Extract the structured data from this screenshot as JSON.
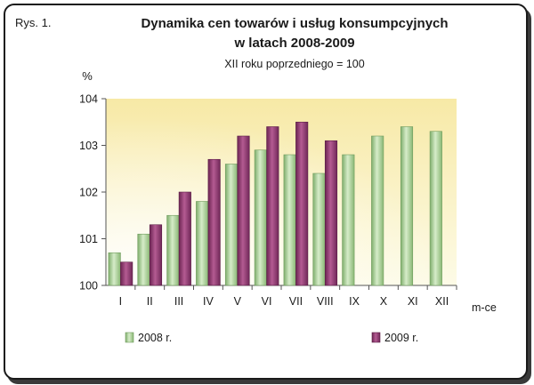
{
  "figure_label": "Rys. 1.",
  "chart_data": {
    "type": "bar",
    "title_line1": "Dynamika cen towarów i usług konsumpcyjnych",
    "title_line2": "w latach 2008-2009",
    "subtitle": "XII roku poprzedniego = 100",
    "ylabel": "%",
    "xlabel": "m-ce",
    "ylim": [
      100,
      104
    ],
    "yticks": [
      100,
      101,
      102,
      103,
      104
    ],
    "categories": [
      "I",
      "II",
      "III",
      "IV",
      "V",
      "VI",
      "VII",
      "VIII",
      "IX",
      "X",
      "XI",
      "XII"
    ],
    "series": [
      {
        "name": "2008 r.",
        "color": "#a3c98f",
        "values": [
          100.7,
          101.1,
          101.5,
          101.8,
          102.6,
          102.9,
          102.8,
          102.4,
          102.8,
          103.2,
          103.4,
          103.3
        ]
      },
      {
        "name": "2009 r.",
        "color": "#8e3a6e",
        "values": [
          100.5,
          101.3,
          102.0,
          102.7,
          103.2,
          103.4,
          103.5,
          103.1,
          null,
          null,
          null,
          null
        ]
      }
    ],
    "grid": false,
    "legend_position": "bottom"
  }
}
